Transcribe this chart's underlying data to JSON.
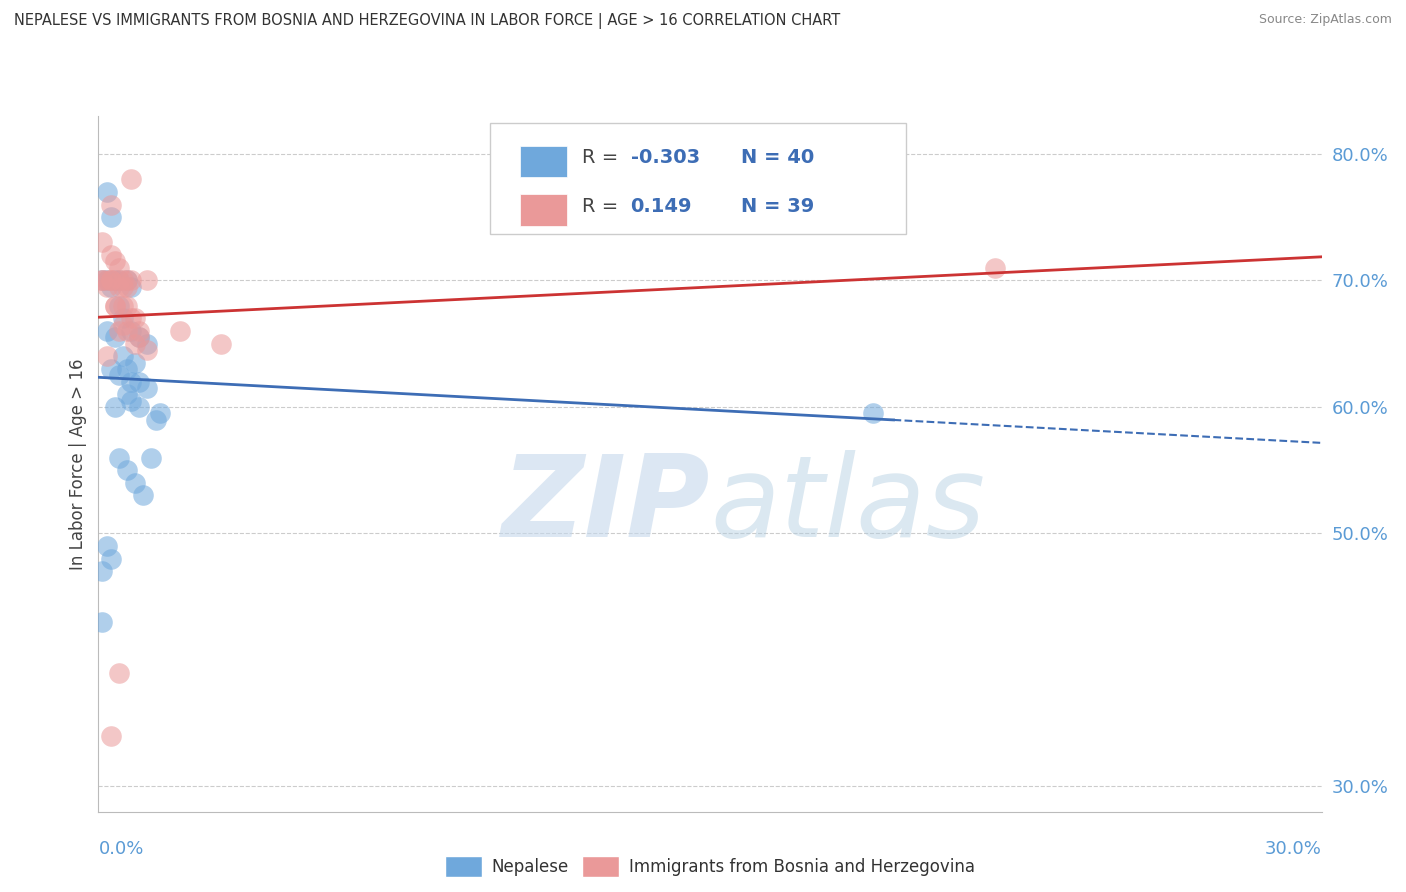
{
  "title": "NEPALESE VS IMMIGRANTS FROM BOSNIA AND HERZEGOVINA IN LABOR FORCE | AGE > 16 CORRELATION CHART",
  "source": "Source: ZipAtlas.com",
  "ylabel": "In Labor Force | Age > 16",
  "blue_color": "#6fa8dc",
  "pink_color": "#ea9999",
  "blue_line_color": "#3d6db5",
  "pink_line_color": "#cc3333",
  "legend_text_color": "#3d6db5",
  "axis_label_color": "#5b9bd5",
  "text_color": "#444444",
  "xlim": [
    0.0,
    0.3
  ],
  "ylim": [
    0.28,
    0.83
  ],
  "yticks_right": [
    0.3,
    0.5,
    0.6,
    0.7,
    0.8
  ],
  "ytick_labels": [
    "30.0%",
    "50.0%",
    "60.0%",
    "70.0%",
    "80.0%"
  ],
  "nepalese_x": [
    0.001,
    0.002,
    0.003,
    0.002,
    0.004,
    0.003,
    0.005,
    0.007,
    0.005,
    0.008,
    0.002,
    0.004,
    0.006,
    0.008,
    0.01,
    0.012,
    0.006,
    0.003,
    0.005,
    0.009,
    0.01,
    0.012,
    0.015,
    0.004,
    0.007,
    0.008,
    0.01,
    0.014,
    0.001,
    0.002,
    0.003,
    0.005,
    0.007,
    0.009,
    0.011,
    0.013,
    0.007,
    0.008,
    0.19,
    0.001
  ],
  "nepalese_y": [
    0.7,
    0.7,
    0.695,
    0.77,
    0.7,
    0.75,
    0.7,
    0.7,
    0.68,
    0.695,
    0.66,
    0.655,
    0.67,
    0.66,
    0.655,
    0.65,
    0.64,
    0.63,
    0.625,
    0.635,
    0.62,
    0.615,
    0.595,
    0.6,
    0.61,
    0.605,
    0.6,
    0.59,
    0.47,
    0.49,
    0.48,
    0.56,
    0.55,
    0.54,
    0.53,
    0.56,
    0.63,
    0.62,
    0.595,
    0.43
  ],
  "bosnia_x": [
    0.001,
    0.002,
    0.003,
    0.001,
    0.005,
    0.006,
    0.007,
    0.008,
    0.003,
    0.004,
    0.005,
    0.006,
    0.007,
    0.004,
    0.006,
    0.008,
    0.01,
    0.003,
    0.005,
    0.007,
    0.009,
    0.002,
    0.004,
    0.006,
    0.01,
    0.012,
    0.003,
    0.005,
    0.22,
    0.001,
    0.003,
    0.005,
    0.007,
    0.009,
    0.008,
    0.012,
    0.02,
    0.03,
    0.002
  ],
  "bosnia_y": [
    0.7,
    0.695,
    0.7,
    0.73,
    0.7,
    0.695,
    0.7,
    0.7,
    0.72,
    0.715,
    0.71,
    0.7,
    0.695,
    0.68,
    0.68,
    0.67,
    0.66,
    0.76,
    0.39,
    0.66,
    0.65,
    0.64,
    0.68,
    0.665,
    0.655,
    0.645,
    0.34,
    0.66,
    0.71,
    0.7,
    0.7,
    0.695,
    0.68,
    0.67,
    0.78,
    0.7,
    0.66,
    0.65,
    0.7
  ],
  "grid_color": "#cccccc",
  "bg_color": "#ffffff"
}
